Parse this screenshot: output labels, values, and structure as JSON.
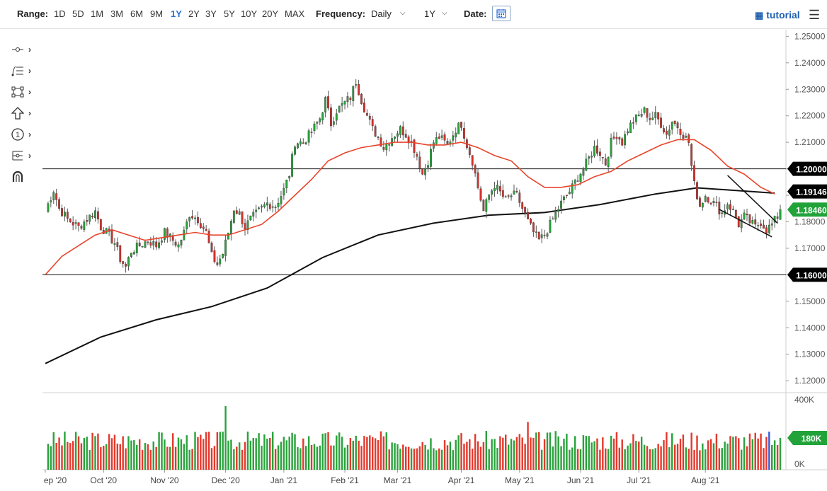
{
  "toolbar": {
    "range_label": "Range:",
    "ranges": [
      "1D",
      "5D",
      "1M",
      "3M",
      "6M",
      "9M",
      "1Y",
      "2Y",
      "3Y",
      "5Y",
      "10Y",
      "20Y",
      "MAX"
    ],
    "active_range": "1Y",
    "frequency_label": "Frequency:",
    "frequency_value": "Daily",
    "period_value": "1Y",
    "date_label": "Date:",
    "tutorial_label": "tutorial"
  },
  "tools": [
    "crosshair-tool-icon",
    "fib-levels-tool-icon",
    "rectangle-tool-icon",
    "arrow-shape-tool-icon",
    "counter-tool-icon",
    "pitchfork-tool-icon",
    "magnet-tool-icon"
  ],
  "chart_data": {
    "type": "candlestick",
    "instrument_hint": "EUR/USD daily",
    "x_tick_labels": [
      "ep '20",
      "Oct '20",
      "Nov '20",
      "Dec '20",
      "Jan '21",
      "Feb '21",
      "Mar '21",
      "Apr '21",
      "May '21",
      "Jun '21",
      "Jul '21",
      "Aug '21"
    ],
    "y_tick_labels": [
      "1.25000",
      "1.24000",
      "1.23000",
      "1.22000",
      "1.21000",
      "1.20000",
      "1.19000",
      "1.18000",
      "1.17000",
      "1.16000",
      "1.15000",
      "1.14000",
      "1.13000",
      "1.12000"
    ],
    "ylim": [
      1.1155,
      1.2525
    ],
    "horizontal_lines": [
      1.2,
      1.16
    ],
    "price_labels": [
      {
        "text": "1.20000",
        "value": 1.2,
        "color": "#000000"
      },
      {
        "text": "1.19146",
        "value": 1.19146,
        "color": "#000000"
      },
      {
        "text": "1.18460",
        "value": 1.1846,
        "color": "#22a33a"
      },
      {
        "text": "1.16000",
        "value": 1.16,
        "color": "#000000"
      }
    ],
    "close_path": [
      [
        0,
        1.184
      ],
      [
        3,
        1.192
      ],
      [
        5,
        1.185
      ],
      [
        8,
        1.181
      ],
      [
        12,
        1.178
      ],
      [
        15,
        1.181
      ],
      [
        18,
        1.184
      ],
      [
        20,
        1.178
      ],
      [
        22,
        1.176
      ],
      [
        25,
        1.172
      ],
      [
        27,
        1.166
      ],
      [
        29,
        1.163
      ],
      [
        31,
        1.169
      ],
      [
        34,
        1.171
      ],
      [
        37,
        1.173
      ],
      [
        40,
        1.171
      ],
      [
        43,
        1.176
      ],
      [
        46,
        1.173
      ],
      [
        48,
        1.171
      ],
      [
        50,
        1.176
      ],
      [
        52,
        1.183
      ],
      [
        55,
        1.181
      ],
      [
        58,
        1.176
      ],
      [
        60,
        1.167
      ],
      [
        62,
        1.164
      ],
      [
        64,
        1.168
      ],
      [
        66,
        1.176
      ],
      [
        68,
        1.185
      ],
      [
        70,
        1.183
      ],
      [
        72,
        1.178
      ],
      [
        74,
        1.181
      ],
      [
        77,
        1.184
      ],
      [
        80,
        1.187
      ],
      [
        83,
        1.186
      ],
      [
        86,
        1.192
      ],
      [
        88,
        1.198
      ],
      [
        90,
        1.21
      ],
      [
        93,
        1.21
      ],
      [
        96,
        1.214
      ],
      [
        99,
        1.219
      ],
      [
        101,
        1.226
      ],
      [
        103,
        1.217
      ],
      [
        105,
        1.222
      ],
      [
        108,
        1.225
      ],
      [
        110,
        1.227
      ],
      [
        112,
        1.233
      ],
      [
        114,
        1.226
      ],
      [
        116,
        1.22
      ],
      [
        118,
        1.215
      ],
      [
        120,
        1.212
      ],
      [
        122,
        1.208
      ],
      [
        125,
        1.212
      ],
      [
        128,
        1.215
      ],
      [
        130,
        1.213
      ],
      [
        132,
        1.21
      ],
      [
        134,
        1.205
      ],
      [
        136,
        1.198
      ],
      [
        138,
        1.203
      ],
      [
        140,
        1.21
      ],
      [
        142,
        1.212
      ],
      [
        145,
        1.209
      ],
      [
        148,
        1.215
      ],
      [
        150,
        1.217
      ],
      [
        152,
        1.209
      ],
      [
        154,
        1.203
      ],
      [
        156,
        1.193
      ],
      [
        158,
        1.184
      ],
      [
        160,
        1.19
      ],
      [
        162,
        1.194
      ],
      [
        164,
        1.191
      ],
      [
        166,
        1.188
      ],
      [
        168,
        1.19
      ],
      [
        170,
        1.19
      ],
      [
        172,
        1.185
      ],
      [
        174,
        1.18
      ],
      [
        176,
        1.176
      ],
      [
        178,
        1.173
      ],
      [
        180,
        1.175
      ],
      [
        182,
        1.179
      ],
      [
        184,
        1.183
      ],
      [
        186,
        1.187
      ],
      [
        188,
        1.19
      ],
      [
        190,
        1.193
      ],
      [
        192,
        1.197
      ],
      [
        194,
        1.2
      ],
      [
        196,
        1.204
      ],
      [
        198,
        1.208
      ],
      [
        200,
        1.206
      ],
      [
        202,
        1.202
      ],
      [
        204,
        1.21
      ],
      [
        206,
        1.213
      ],
      [
        208,
        1.21
      ],
      [
        210,
        1.215
      ],
      [
        212,
        1.218
      ],
      [
        214,
        1.22
      ],
      [
        216,
        1.222
      ],
      [
        218,
        1.219
      ],
      [
        220,
        1.22
      ],
      [
        222,
        1.217
      ],
      [
        224,
        1.213
      ],
      [
        226,
        1.218
      ],
      [
        228,
        1.216
      ],
      [
        230,
        1.213
      ],
      [
        232,
        1.21
      ],
      [
        233,
        1.201
      ],
      [
        234,
        1.194
      ],
      [
        236,
        1.186
      ],
      [
        238,
        1.19
      ],
      [
        240,
        1.188
      ],
      [
        242,
        1.186
      ],
      [
        244,
        1.183
      ],
      [
        246,
        1.187
      ],
      [
        248,
        1.184
      ],
      [
        250,
        1.179
      ],
      [
        252,
        1.182
      ],
      [
        254,
        1.18
      ],
      [
        256,
        1.178
      ],
      [
        258,
        1.18
      ],
      [
        260,
        1.177
      ],
      [
        262,
        1.179
      ],
      [
        264,
        1.182
      ],
      [
        265,
        1.1846
      ]
    ],
    "ma50_path": [
      [
        0,
        1.16
      ],
      [
        6,
        1.167
      ],
      [
        12,
        1.171
      ],
      [
        18,
        1.175
      ],
      [
        24,
        1.177
      ],
      [
        30,
        1.175
      ],
      [
        36,
        1.173
      ],
      [
        42,
        1.174
      ],
      [
        48,
        1.175
      ],
      [
        54,
        1.176
      ],
      [
        60,
        1.175
      ],
      [
        66,
        1.175
      ],
      [
        72,
        1.177
      ],
      [
        78,
        1.179
      ],
      [
        84,
        1.184
      ],
      [
        90,
        1.19
      ],
      [
        96,
        1.196
      ],
      [
        102,
        1.203
      ],
      [
        108,
        1.206
      ],
      [
        114,
        1.208
      ],
      [
        120,
        1.209
      ],
      [
        126,
        1.21
      ],
      [
        132,
        1.21
      ],
      [
        138,
        1.209
      ],
      [
        144,
        1.209
      ],
      [
        150,
        1.21
      ],
      [
        156,
        1.208
      ],
      [
        162,
        1.205
      ],
      [
        168,
        1.203
      ],
      [
        174,
        1.197
      ],
      [
        180,
        1.193
      ],
      [
        186,
        1.193
      ],
      [
        192,
        1.194
      ],
      [
        198,
        1.197
      ],
      [
        204,
        1.199
      ],
      [
        210,
        1.203
      ],
      [
        216,
        1.206
      ],
      [
        222,
        1.209
      ],
      [
        228,
        1.211
      ],
      [
        234,
        1.211
      ],
      [
        240,
        1.207
      ],
      [
        246,
        1.201
      ],
      [
        252,
        1.198
      ],
      [
        258,
        1.193
      ],
      [
        263,
        1.1905
      ]
    ],
    "ma200_path": [
      [
        0,
        1.1265
      ],
      [
        20,
        1.1365
      ],
      [
        40,
        1.143
      ],
      [
        60,
        1.148
      ],
      [
        80,
        1.155
      ],
      [
        100,
        1.1665
      ],
      [
        120,
        1.175
      ],
      [
        140,
        1.1795
      ],
      [
        160,
        1.1825
      ],
      [
        180,
        1.1835
      ],
      [
        200,
        1.1865
      ],
      [
        220,
        1.1905
      ],
      [
        235,
        1.1928
      ],
      [
        263,
        1.1908
      ]
    ],
    "channel_upper": [
      [
        246,
        1.1975
      ],
      [
        264,
        1.1795
      ]
    ],
    "channel_lower": [
      [
        243,
        1.1847
      ],
      [
        262,
        1.1743
      ]
    ],
    "volume": {
      "y_tick_labels": [
        "400K",
        "0K"
      ],
      "ymax": 400000,
      "last_label": "180K"
    }
  }
}
